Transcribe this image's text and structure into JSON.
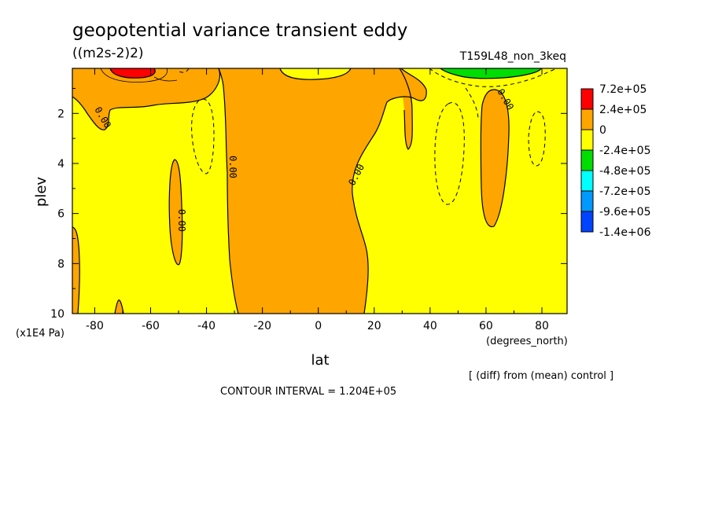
{
  "chart_data": {
    "type": "heatmap",
    "title": "geopotential variance transient eddy",
    "units": "((m2s-2)2)",
    "run_label": "T159L48_non_3keq",
    "xlabel": "lat",
    "x_units": "(degrees_north)",
    "ylabel": "plev",
    "y_units": "(x1E4 Pa)",
    "x_ticks": [
      "-80",
      "-60",
      "-40",
      "-20",
      "0",
      "20",
      "40",
      "60",
      "80"
    ],
    "y_ticks": [
      "2",
      "4",
      "6",
      "8",
      "10"
    ],
    "xlim": [
      -88,
      89
    ],
    "ylim": [
      10,
      0.2
    ],
    "y_inverted": true,
    "contour_label": "0.00",
    "contour_interval_text": "CONTOUR INTERVAL = 1.204E+05",
    "comparison_text": "[ (diff) from (mean) control ]",
    "colorbar": {
      "labels": [
        "7.2e+05",
        "2.4e+05",
        "0",
        "-2.4e+05",
        "-4.8e+05",
        "-7.2e+05",
        "-9.6e+05",
        "-1.4e+06"
      ],
      "colors": [
        "#ff0000",
        "#ffa500",
        "#ffff00",
        "#00dd00",
        "#00ffff",
        "#0099ff",
        "#0044ff"
      ]
    },
    "background_level_color": "#ffff00",
    "positive_regions": [
      {
        "lat": [
          -88,
          -85
        ],
        "plev": [
          6.5,
          10
        ],
        "level": "2.4e+05"
      },
      {
        "lat": [
          -85,
          -40
        ],
        "plev": [
          0.2,
          1.4
        ],
        "level": "2.4e+05"
      },
      {
        "lat": [
          -54,
          -50
        ],
        "plev": [
          3.8,
          8.0
        ],
        "level": "2.4e+05"
      },
      {
        "lat": [
          -34,
          18
        ],
        "plev": [
          0.2,
          10
        ],
        "level": "2.4e+05"
      },
      {
        "lat": [
          25,
          32
        ],
        "plev": [
          0.2,
          2.8
        ],
        "level": "2.4e+05"
      },
      {
        "lat": [
          58,
          68
        ],
        "plev": [
          0.9,
          6.4
        ],
        "level": "2.4e+05"
      },
      {
        "lat": [
          -76,
          -64
        ],
        "plev": [
          0.2,
          0.45
        ],
        "level": "7.2e+05"
      }
    ],
    "negative_regions": [
      {
        "lat": [
          50,
          72
        ],
        "plev": [
          0.2,
          0.5
        ],
        "level": "-4.8e+05"
      }
    ]
  }
}
